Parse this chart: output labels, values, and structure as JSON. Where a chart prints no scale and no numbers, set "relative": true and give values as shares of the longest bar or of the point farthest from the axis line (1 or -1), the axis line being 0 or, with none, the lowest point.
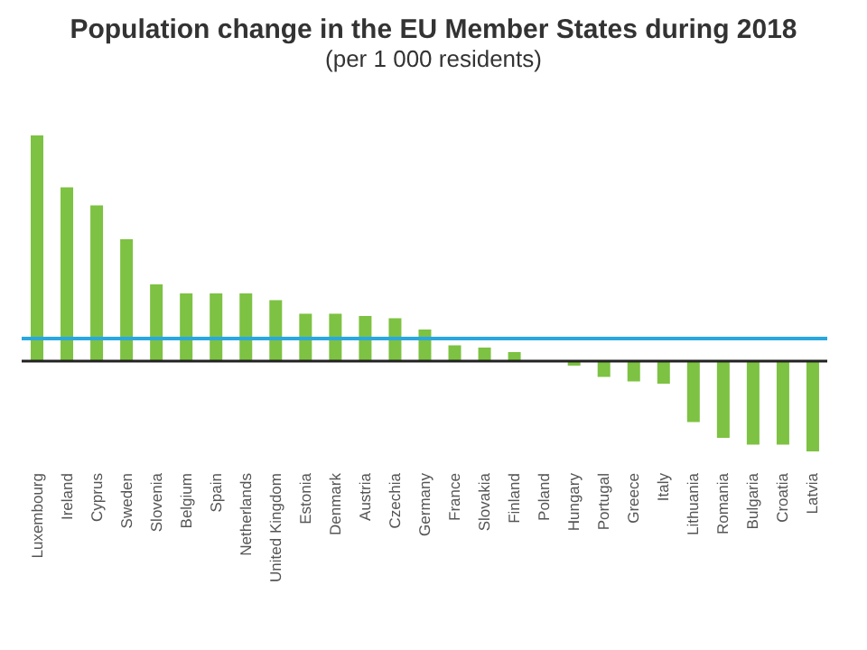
{
  "chart_data": {
    "type": "bar",
    "title": "Population change in the EU Member States during 2018",
    "subtitle": "(per 1 000 residents)",
    "relative": true,
    "categories": [
      "Luxembourg",
      "Ireland",
      "Cyprus",
      "Sweden",
      "Slovenia",
      "Belgium",
      "Spain",
      "Netherlands",
      "United Kingdom",
      "Estonia",
      "Denmark",
      "Austria",
      "Czechia",
      "Germany",
      "France",
      "Slovakia",
      "Finland",
      "Poland",
      "Hungary",
      "Portugal",
      "Greece",
      "Italy",
      "Lithuania",
      "Romania",
      "Bulgaria",
      "Croatia",
      "Latvia"
    ],
    "values": [
      1,
      0.77,
      0.69,
      0.54,
      0.34,
      0.3,
      0.3,
      0.3,
      0.27,
      0.21,
      0.21,
      0.2,
      0.19,
      0.14,
      0.07,
      0.06,
      0.04,
      0,
      -0.02,
      -0.07,
      -0.09,
      -0.1,
      -0.27,
      -0.34,
      -0.37,
      -0.37,
      -0.4
    ],
    "color": "#7dc242",
    "ref_lines": [
      {
        "axis": "y",
        "value": 0.1,
        "color": "#29a8e0"
      }
    ]
  }
}
